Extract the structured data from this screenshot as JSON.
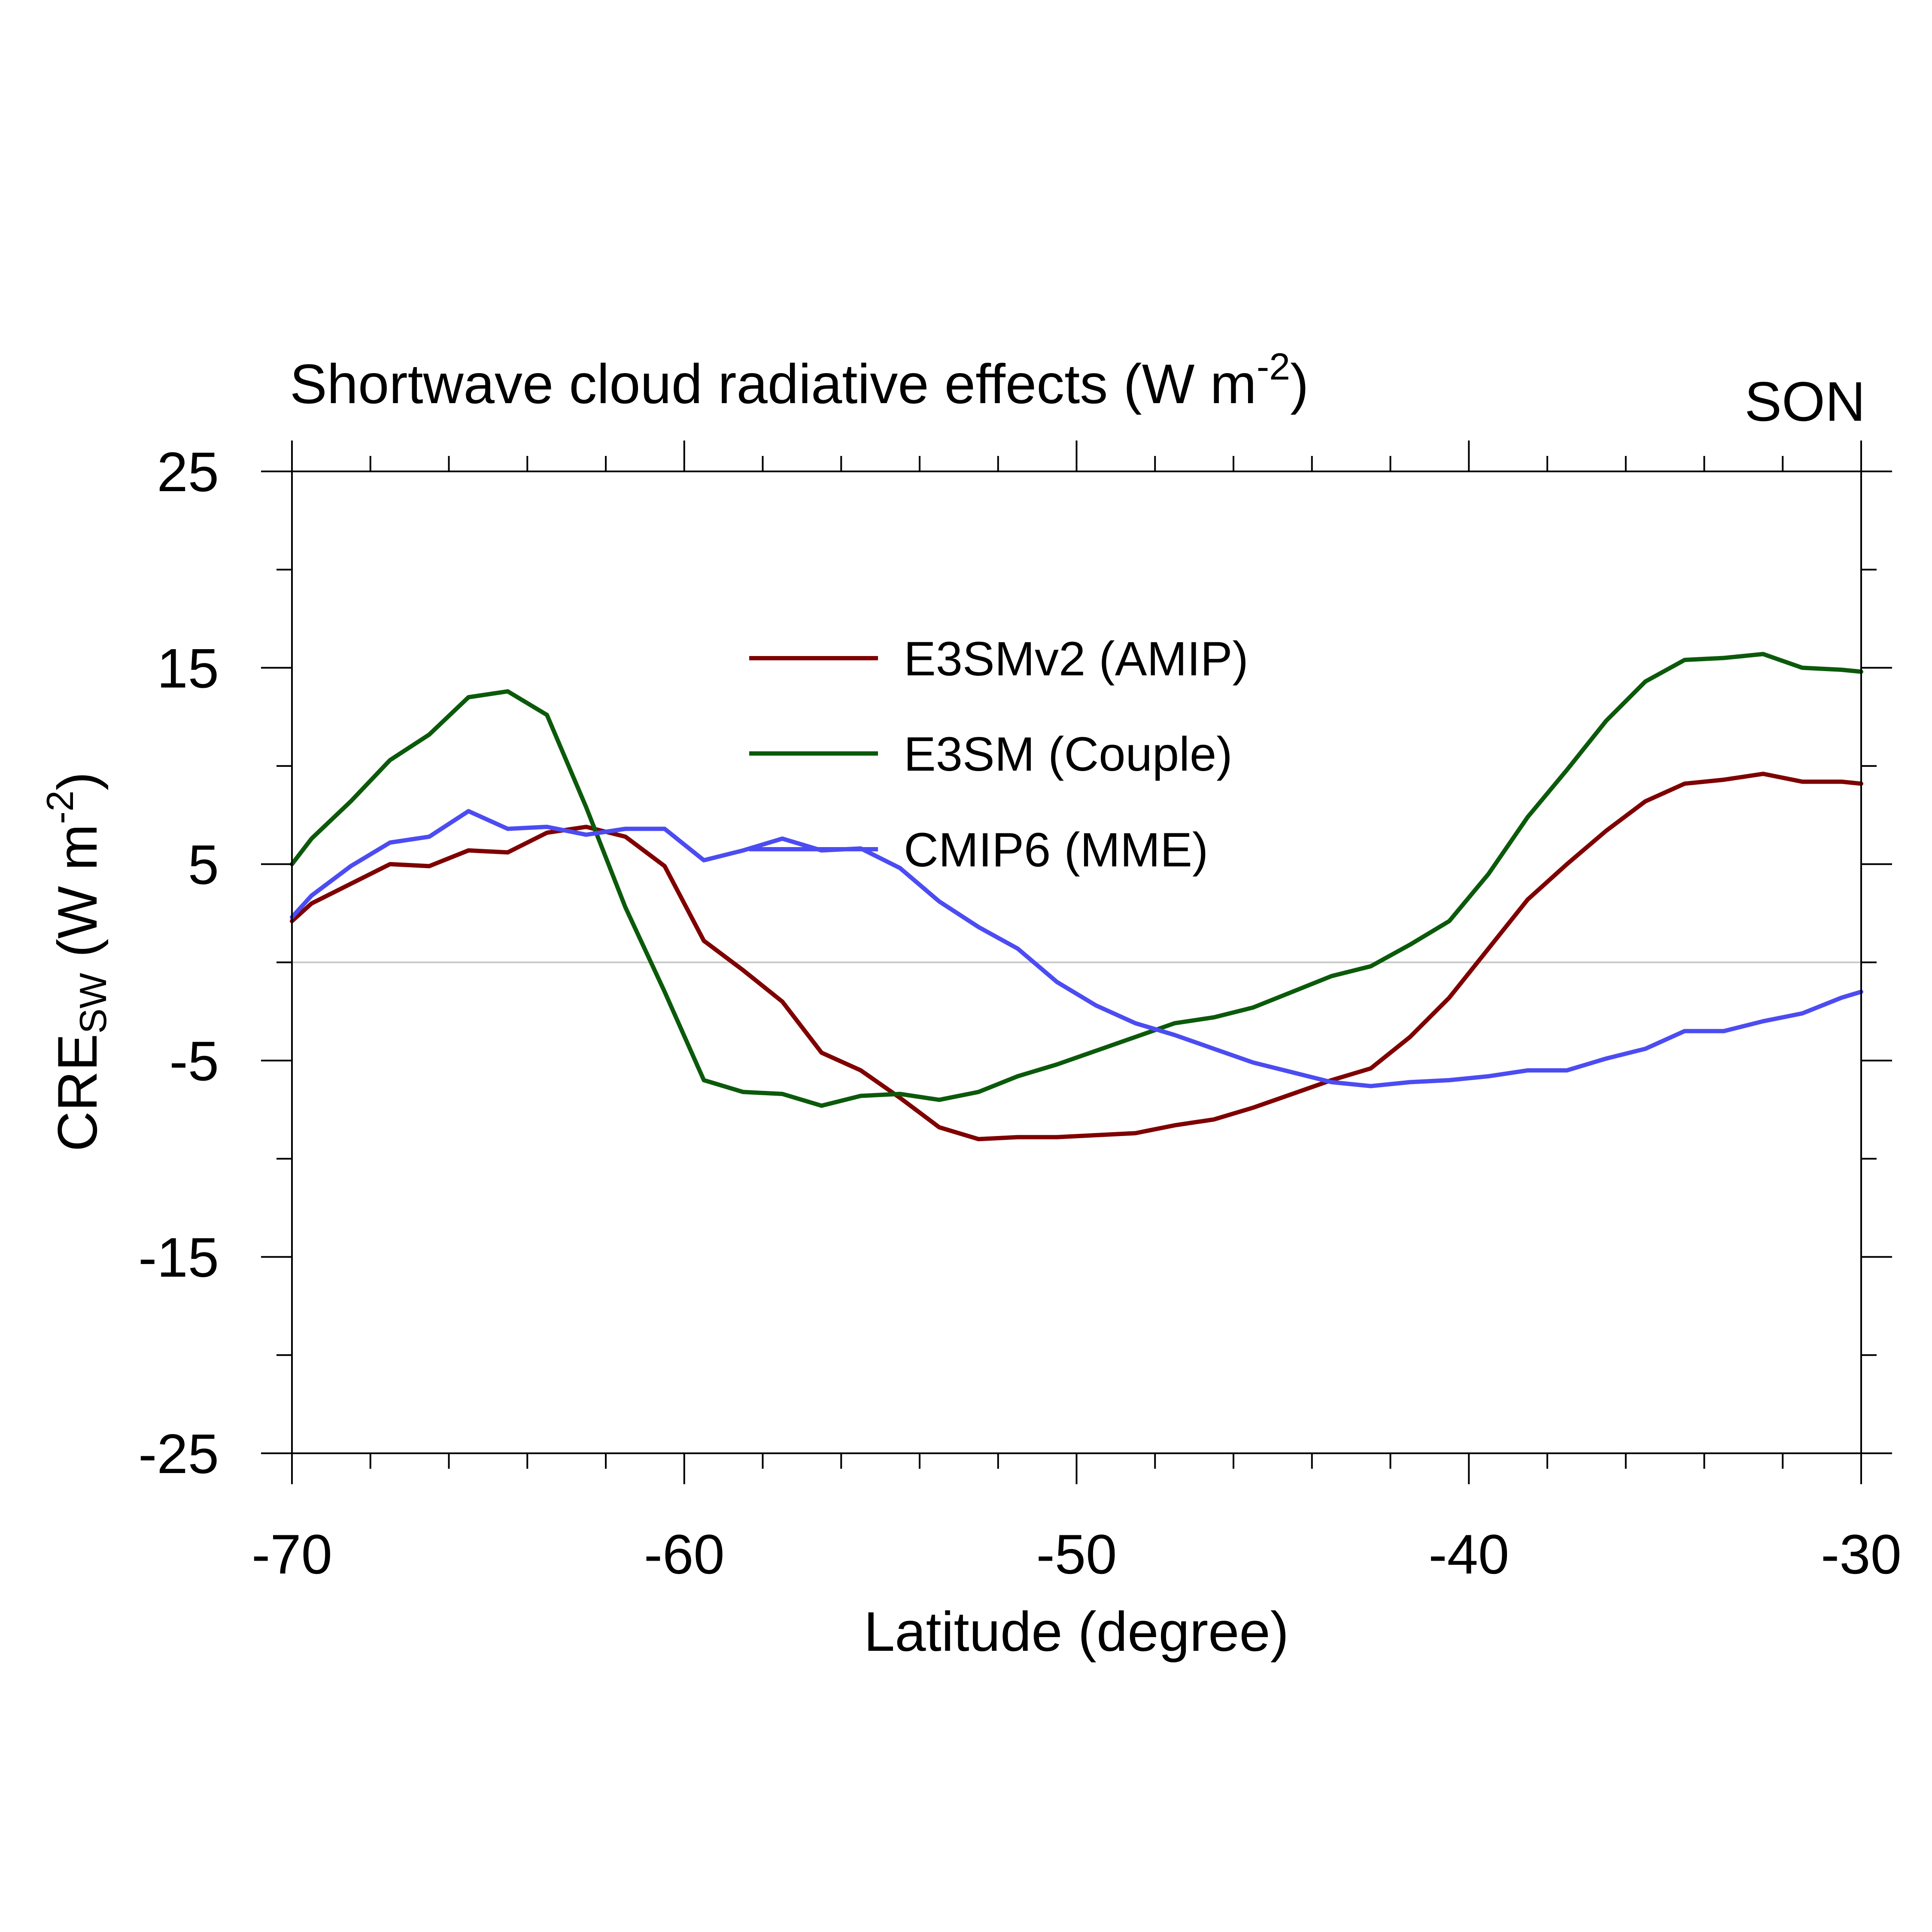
{
  "chart_data": {
    "type": "line",
    "title": "Shortwave cloud radiative effects (W m",
    "title_sup": "-2",
    "title_close": ")",
    "season": "SON",
    "xlabel": "Latitude (degree)",
    "ylabel_main": "CRE",
    "ylabel_sub": "SW",
    "ylabel_rest": " (W m",
    "ylabel_sup": "-2",
    "ylabel_close": ")",
    "xlim": [
      -70,
      -30
    ],
    "ylim": [
      -25,
      25
    ],
    "x_ticks": [
      -70,
      -60,
      -50,
      -40,
      -30
    ],
    "x_tick_labels": [
      "-70",
      "-60",
      "-50",
      "-40",
      "-30"
    ],
    "y_ticks": [
      25,
      15,
      5,
      -5,
      -15,
      -25
    ],
    "y_tick_labels": [
      "25",
      "15",
      "5",
      "-5",
      "-15",
      "-25"
    ],
    "zero_line": 0,
    "x": [
      -70,
      -69.5,
      -68.5,
      -67.5,
      -66.5,
      -65.5,
      -64.5,
      -63.5,
      -62.5,
      -61.5,
      -60.5,
      -59.5,
      -58.5,
      -57.5,
      -56.5,
      -55.5,
      -54.5,
      -53.5,
      -52.5,
      -51.5,
      -50.5,
      -49.5,
      -48.5,
      -47.5,
      -46.5,
      -45.5,
      -44.5,
      -43.5,
      -42.5,
      -41.5,
      -40.5,
      -39.5,
      -38.5,
      -37.5,
      -36.5,
      -35.5,
      -34.5,
      -33.5,
      -32.5,
      -31.5,
      -30.5,
      -30
    ],
    "series": [
      {
        "name": "E3SMv2 (AMIP)",
        "color": "#7f0000",
        "values": [
          2.1,
          3.0,
          4.0,
          5.0,
          4.9,
          5.7,
          5.6,
          6.6,
          6.9,
          6.4,
          4.9,
          1.1,
          -0.4,
          -2.0,
          -4.6,
          -5.5,
          -6.9,
          -8.4,
          -9.0,
          -8.9,
          -8.9,
          -8.8,
          -8.7,
          -8.3,
          -8.0,
          -7.4,
          -6.7,
          -6.0,
          -5.4,
          -3.8,
          -1.8,
          0.7,
          3.2,
          5.0,
          6.7,
          8.2,
          9.1,
          9.3,
          9.6,
          9.2,
          9.2,
          9.1
        ]
      },
      {
        "name": "E3SM (Couple)",
        "color": "#0b5a0b",
        "values": [
          5.0,
          6.3,
          8.2,
          10.3,
          11.6,
          13.5,
          13.8,
          12.6,
          7.9,
          2.8,
          -1.5,
          -6.0,
          -6.6,
          -6.7,
          -7.3,
          -6.8,
          -6.7,
          -7.0,
          -6.6,
          -5.8,
          -5.2,
          -4.5,
          -3.8,
          -3.1,
          -2.8,
          -2.3,
          -1.5,
          -0.7,
          -0.2,
          0.9,
          2.1,
          4.5,
          7.4,
          9.8,
          12.3,
          14.3,
          15.4,
          15.5,
          15.7,
          15.0,
          14.9,
          14.8
        ]
      },
      {
        "name": "CMIP6 (MME)",
        "color": "#4c4cf2",
        "values": [
          2.3,
          3.4,
          4.9,
          6.1,
          6.4,
          7.7,
          6.8,
          6.9,
          6.5,
          6.8,
          6.8,
          5.2,
          5.7,
          6.3,
          5.7,
          5.8,
          4.8,
          3.1,
          1.8,
          0.7,
          -1.0,
          -2.2,
          -3.1,
          -3.7,
          -4.4,
          -5.1,
          -5.6,
          -6.1,
          -6.3,
          -6.1,
          -6.0,
          -5.8,
          -5.5,
          -5.5,
          -4.9,
          -4.4,
          -3.5,
          -3.5,
          -3.0,
          -2.6,
          -1.8,
          -1.5
        ]
      }
    ],
    "legend_position": "upper-center"
  }
}
